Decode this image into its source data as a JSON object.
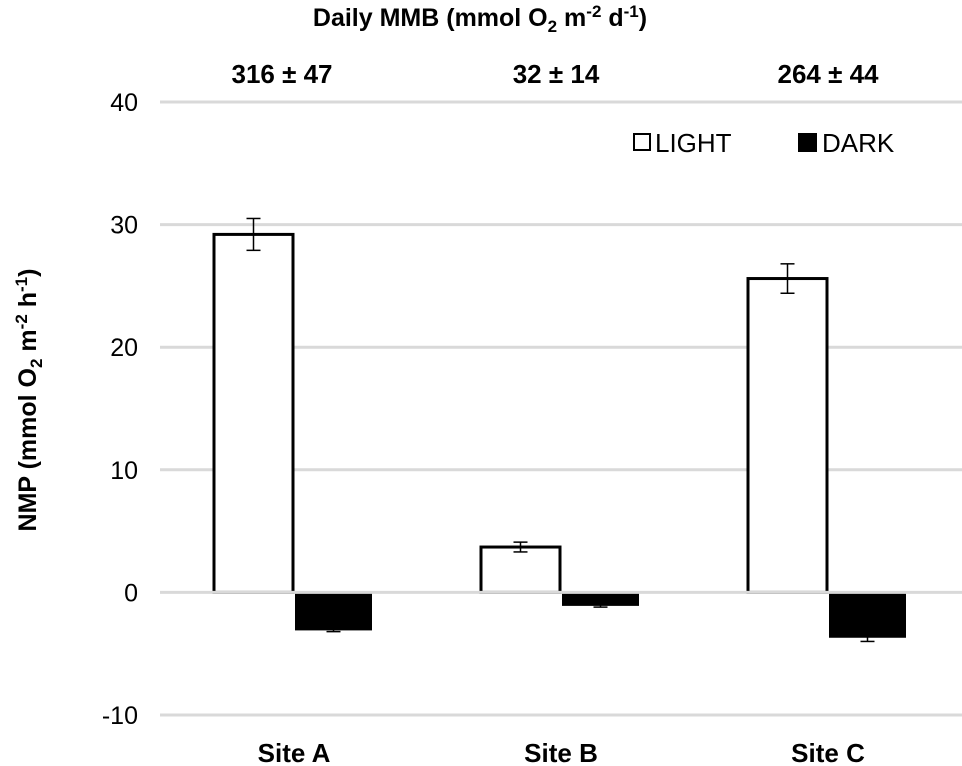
{
  "chart_data": {
    "type": "bar",
    "title": "Daily MMB (mmol O2 m-2 d-1)",
    "title_parts": {
      "pre": "Daily MMB (mmol O",
      "sub": "2",
      "mid": " m",
      "sup1": "-2",
      "mid2": " d",
      "sup2": "-1",
      "post": ")"
    },
    "ylabel": "NMP (mmol O2 m-2 h-1)",
    "ylabel_parts": {
      "pre": "NMP (mmol O",
      "sub": "2",
      "mid": " m",
      "sup1": "-2",
      "mid2": " h",
      "sup2": "-1",
      "post": ")"
    },
    "xlabel": "",
    "categories": [
      "Site A",
      "Site B",
      "Site C"
    ],
    "daily_mmb_annotations": [
      "316 ± 47",
      "32 ± 14",
      "264 ± 44"
    ],
    "series": [
      {
        "name": "LIGHT",
        "fill": "#ffffff",
        "stroke": "#000000",
        "values": [
          29.2,
          3.7,
          25.6
        ],
        "errors": [
          1.3,
          0.4,
          1.2
        ]
      },
      {
        "name": "DARK",
        "fill": "#000000",
        "stroke": "#000000",
        "values": [
          -3.1,
          -1.1,
          -3.7
        ],
        "errors": [
          0.1,
          0.1,
          0.3
        ]
      }
    ],
    "ylim": [
      -10,
      40
    ],
    "yticks": [
      -10,
      0,
      10,
      20,
      30,
      40
    ],
    "ytick_labels": [
      "-10",
      "0",
      "10",
      "20",
      "30",
      "40"
    ],
    "grid": true,
    "gridline_color": "#d9d9d9",
    "legend_position": "top-right inside plot"
  },
  "legend": {
    "light_label": "LIGHT",
    "dark_label": "DARK"
  }
}
